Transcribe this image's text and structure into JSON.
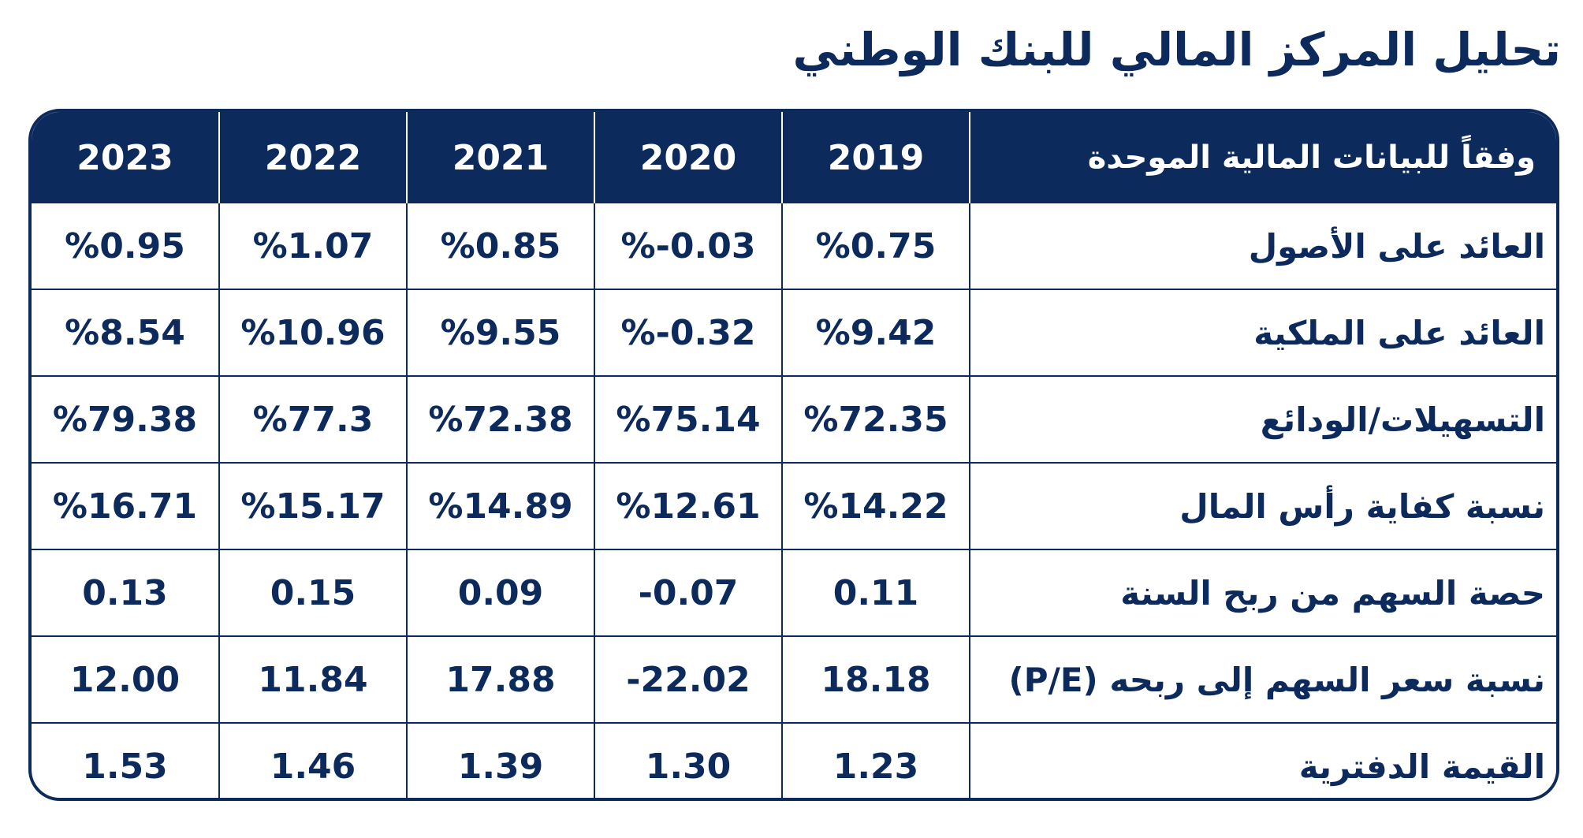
{
  "title": "تحليل المركز المالي للبنك الوطني",
  "table": {
    "header_label": "وفقاً للبيانات المالية الموحدة",
    "years": [
      "2023",
      "2022",
      "2021",
      "2020",
      "2019"
    ],
    "rows": [
      {
        "label": "العائد على الأصول",
        "values": [
          "%0.95",
          "%1.07",
          "%0.85",
          "%-0.03",
          "%0.75"
        ]
      },
      {
        "label": "العائد على الملكية",
        "values": [
          "%8.54",
          "%10.96",
          "%9.55",
          "%-0.32",
          "%9.42"
        ]
      },
      {
        "label": "التسهيلات/الودائع",
        "values": [
          "%79.38",
          "%77.3",
          "%72.38",
          "%75.14",
          "%72.35"
        ]
      },
      {
        "label": "نسبة كفاية رأس المال",
        "values": [
          "%16.71",
          "%15.17",
          "%14.89",
          "%12.61",
          "%14.22"
        ]
      },
      {
        "label": "حصة السهم من ربح السنة",
        "values": [
          "0.13",
          "0.15",
          "0.09",
          "-0.07",
          "0.11"
        ]
      },
      {
        "label": "نسبة سعر السهم إلى ربحه (P/E)",
        "values": [
          "12.00",
          "11.84",
          "17.88",
          "-22.02",
          "18.18"
        ]
      },
      {
        "label": "القيمة الدفترية",
        "values": [
          "1.53",
          "1.46",
          "1.39",
          "1.30",
          "1.23"
        ]
      }
    ]
  },
  "colors": {
    "navy": "#0d2a5c",
    "white": "#ffffff"
  }
}
